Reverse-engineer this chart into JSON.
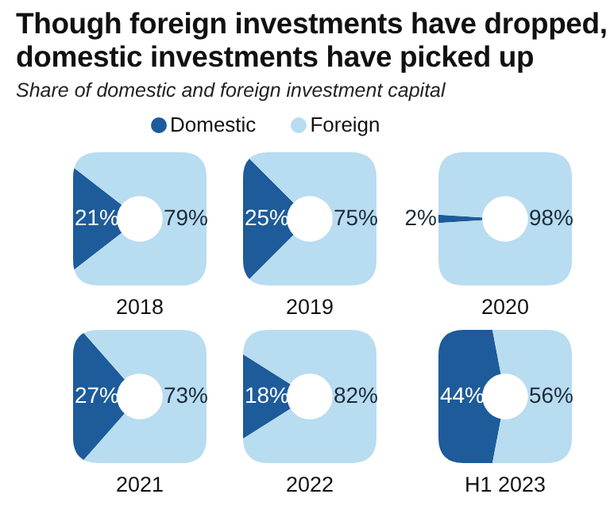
{
  "chart_data": [
    {
      "type": "other",
      "title": "Though foreign investments have dropped, domestic investments have picked up",
      "subtitle": "Share of domestic and foreign investment capital"
    },
    {
      "type": "donut",
      "title": "2018",
      "categories": [
        "Domestic",
        "Foreign"
      ],
      "values": [
        21,
        79
      ],
      "colors": [
        "#1d5b9a",
        "#b8dcf0"
      ],
      "value_labels": [
        "21%",
        "79%"
      ],
      "legend": "top"
    },
    {
      "type": "donut",
      "title": "2019",
      "categories": [
        null,
        null
      ],
      "values": [
        25,
        75
      ],
      "colors": [
        "#1d5b9a",
        "#b8dcf0"
      ],
      "value_labels": [
        "25%",
        "75%"
      ]
    },
    {
      "type": "donut",
      "title": "2020",
      "categories": [
        null,
        null
      ],
      "values": [
        2,
        98
      ],
      "colors": [
        "#1d5b9a",
        "#b8dcf0"
      ],
      "value_labels": [
        "2%",
        "98%"
      ]
    },
    {
      "type": "donut",
      "title": "2021",
      "categories": [
        null,
        null
      ],
      "values": [
        27,
        73
      ],
      "colors": [
        "#1d5b9a",
        "#b8dcf0"
      ],
      "value_labels": [
        "27%",
        "73%"
      ]
    },
    {
      "type": "donut",
      "title": "2022",
      "categories": [
        null,
        null
      ],
      "values": [
        18,
        82
      ],
      "colors": [
        "#1d5b9a",
        "#b8dcf0"
      ],
      "value_labels": [
        "18%",
        "82%"
      ]
    },
    {
      "type": "donut",
      "title": "H1 2023",
      "categories": [
        null,
        null
      ],
      "values": [
        44,
        56
      ],
      "colors": [
        "#1d5b9a",
        "#b8dcf0"
      ],
      "value_labels": [
        "44%",
        "56%"
      ]
    }
  ]
}
